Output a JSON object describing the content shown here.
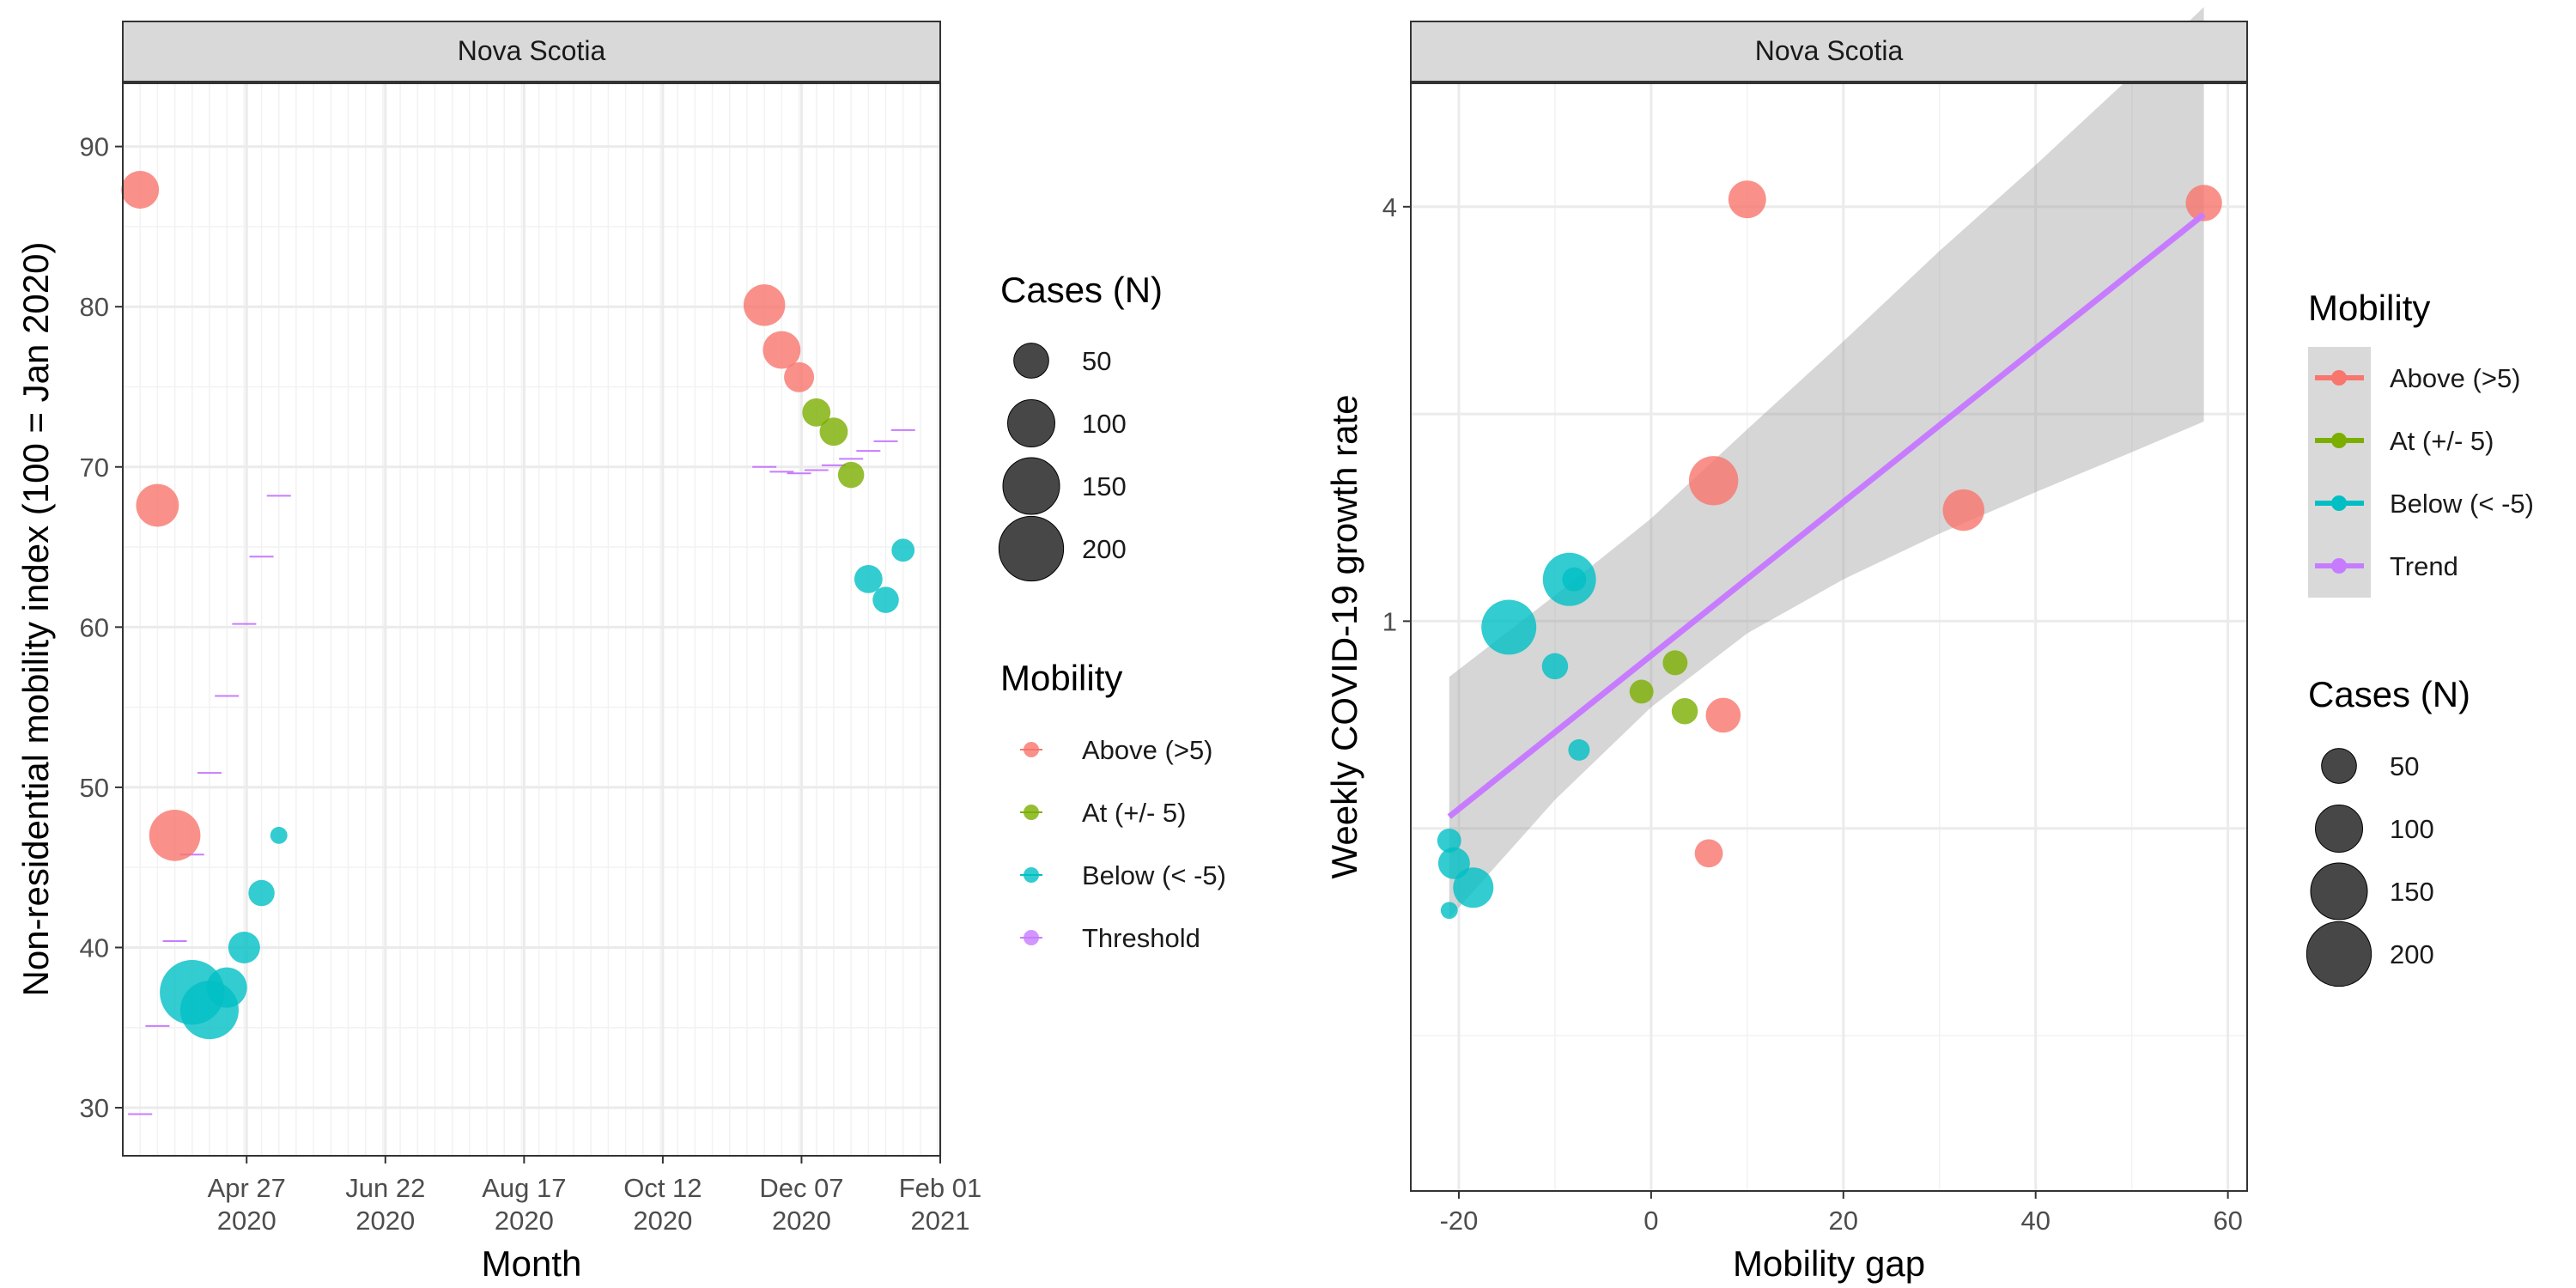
{
  "chart_data": [
    {
      "type": "scatter",
      "facet": "Nova Scotia",
      "xlabel": "Month",
      "ylabel": "Non-residential mobility index (100 = Jan 2020)",
      "xlim": [
        "2020-03-08",
        "2021-02-01"
      ],
      "ylim": [
        27,
        94
      ],
      "x_ticks": [
        {
          "date": "2020-04-27",
          "line1": "Apr 27",
          "line2": "2020"
        },
        {
          "date": "2020-06-22",
          "line1": "Jun 22",
          "line2": "2020"
        },
        {
          "date": "2020-08-17",
          "line1": "Aug 17",
          "line2": "2020"
        },
        {
          "date": "2020-10-12",
          "line1": "Oct 12",
          "line2": "2020"
        },
        {
          "date": "2020-12-07",
          "line1": "Dec 07",
          "line2": "2020"
        },
        {
          "date": "2021-02-01",
          "line1": "Feb 01",
          "line2": "2021"
        }
      ],
      "y_ticks": [
        30,
        40,
        50,
        60,
        70,
        80,
        90
      ],
      "grid": true,
      "colors": {
        "above": "#f8766d",
        "at": "#7cae00",
        "below": "#00bfc4",
        "threshold": "#c77cff"
      },
      "points": [
        {
          "date": "2020-03-15",
          "y": 87.3,
          "cases": 60,
          "mobility": "above"
        },
        {
          "date": "2020-03-22",
          "y": 67.6,
          "cases": 80,
          "mobility": "above"
        },
        {
          "date": "2020-03-29",
          "y": 47.0,
          "cases": 120,
          "mobility": "above"
        },
        {
          "date": "2020-04-05",
          "y": 37.2,
          "cases": 200,
          "mobility": "below"
        },
        {
          "date": "2020-04-12",
          "y": 36.1,
          "cases": 160,
          "mobility": "below"
        },
        {
          "date": "2020-04-19",
          "y": 37.5,
          "cases": 70,
          "mobility": "below"
        },
        {
          "date": "2020-04-26",
          "y": 40.0,
          "cases": 40,
          "mobility": "below"
        },
        {
          "date": "2020-05-03",
          "y": 43.4,
          "cases": 25,
          "mobility": "below"
        },
        {
          "date": "2020-05-10",
          "y": 47.0,
          "cases": 8,
          "mobility": "below"
        },
        {
          "date": "2020-11-22",
          "y": 80.1,
          "cases": 75,
          "mobility": "above"
        },
        {
          "date": "2020-11-29",
          "y": 77.3,
          "cases": 60,
          "mobility": "above"
        },
        {
          "date": "2020-12-06",
          "y": 75.6,
          "cases": 35,
          "mobility": "above"
        },
        {
          "date": "2020-12-13",
          "y": 73.4,
          "cases": 30,
          "mobility": "at"
        },
        {
          "date": "2020-12-20",
          "y": 72.2,
          "cases": 30,
          "mobility": "at"
        },
        {
          "date": "2020-12-27",
          "y": 69.5,
          "cases": 25,
          "mobility": "at"
        },
        {
          "date": "2021-01-03",
          "y": 63.0,
          "cases": 30,
          "mobility": "below"
        },
        {
          "date": "2021-01-10",
          "y": 61.7,
          "cases": 25,
          "mobility": "below"
        },
        {
          "date": "2021-01-17",
          "y": 64.8,
          "cases": 18,
          "mobility": "below"
        }
      ],
      "threshold": [
        {
          "date": "2020-03-15",
          "y": 29.6
        },
        {
          "date": "2020-03-22",
          "y": 35.1
        },
        {
          "date": "2020-03-29",
          "y": 40.4
        },
        {
          "date": "2020-04-05",
          "y": 45.8
        },
        {
          "date": "2020-04-12",
          "y": 50.9
        },
        {
          "date": "2020-04-19",
          "y": 55.7
        },
        {
          "date": "2020-04-26",
          "y": 60.2
        },
        {
          "date": "2020-05-03",
          "y": 64.4
        },
        {
          "date": "2020-05-10",
          "y": 68.2
        },
        {
          "date": "2020-11-22",
          "y": 70.0
        },
        {
          "date": "2020-11-29",
          "y": 69.7
        },
        {
          "date": "2020-12-06",
          "y": 69.6
        },
        {
          "date": "2020-12-13",
          "y": 69.8
        },
        {
          "date": "2020-12-20",
          "y": 70.1
        },
        {
          "date": "2020-12-27",
          "y": 70.5
        },
        {
          "date": "2021-01-03",
          "y": 71.0
        },
        {
          "date": "2021-01-10",
          "y": 71.6
        },
        {
          "date": "2021-01-17",
          "y": 72.3
        }
      ],
      "legend_cases": {
        "title": "Cases (N)",
        "values": [
          50,
          100,
          150,
          200
        ]
      },
      "legend_mobility": {
        "title": "Mobility",
        "labels": [
          "Above (>5)",
          "At (+/- 5)",
          "Below (< -5)",
          "Threshold"
        ]
      }
    },
    {
      "type": "scatter",
      "facet": "Nova Scotia",
      "xlabel": "Mobility gap",
      "ylabel": "Weekly COVID-19 growth rate",
      "log_y": true,
      "xlim": [
        -25,
        62
      ],
      "ylim_log2": [
        -2.75,
        2.6
      ],
      "x_ticks": [
        -20,
        0,
        20,
        40,
        60
      ],
      "y_ticks": [
        {
          "value": 1,
          "label": "1"
        },
        {
          "value": 4,
          "label": "4"
        }
      ],
      "grid": true,
      "points": [
        {
          "x": 10.0,
          "y": 4.1,
          "cases": 60,
          "mobility": "above"
        },
        {
          "x": 57.5,
          "y": 4.05,
          "cases": 55,
          "mobility": "above"
        },
        {
          "x": 6.5,
          "y": 1.6,
          "cases": 110,
          "mobility": "above"
        },
        {
          "x": 32.5,
          "y": 1.45,
          "cases": 75,
          "mobility": "above"
        },
        {
          "x": 7.5,
          "y": 0.73,
          "cases": 50,
          "mobility": "above"
        },
        {
          "x": 6.0,
          "y": 0.46,
          "cases": 30,
          "mobility": "above"
        },
        {
          "x": 2.5,
          "y": 0.87,
          "cases": 22,
          "mobility": "at"
        },
        {
          "x": -1.0,
          "y": 0.79,
          "cases": 20,
          "mobility": "at"
        },
        {
          "x": 3.5,
          "y": 0.74,
          "cases": 25,
          "mobility": "at"
        },
        {
          "x": -8.5,
          "y": 1.15,
          "cases": 130,
          "mobility": "below"
        },
        {
          "x": -8.0,
          "y": 1.15,
          "cases": 20,
          "mobility": "below"
        },
        {
          "x": -14.8,
          "y": 0.98,
          "cases": 140,
          "mobility": "below"
        },
        {
          "x": -10.0,
          "y": 0.86,
          "cases": 25,
          "mobility": "below"
        },
        {
          "x": -7.5,
          "y": 0.65,
          "cases": 15,
          "mobility": "below"
        },
        {
          "x": -21.0,
          "y": 0.48,
          "cases": 20,
          "mobility": "below"
        },
        {
          "x": -20.5,
          "y": 0.445,
          "cases": 40,
          "mobility": "below"
        },
        {
          "x": -18.5,
          "y": 0.41,
          "cases": 70,
          "mobility": "below"
        },
        {
          "x": -21.0,
          "y": 0.38,
          "cases": 8,
          "mobility": "below"
        }
      ],
      "trend": {
        "x": [
          -21,
          57.5
        ],
        "y": [
          0.52,
          3.9
        ]
      },
      "ci": {
        "x": [
          -21,
          -10,
          0,
          10,
          20,
          30,
          40,
          50,
          57.5
        ],
        "upper": [
          0.83,
          1.09,
          1.41,
          1.9,
          2.55,
          3.45,
          4.6,
          6.2,
          7.8
        ],
        "lower": [
          0.37,
          0.55,
          0.75,
          0.96,
          1.15,
          1.34,
          1.54,
          1.76,
          1.95
        ]
      },
      "legend_mobility": {
        "title": "Mobility",
        "labels": [
          "Above (>5)",
          "At (+/- 5)",
          "Below (< -5)",
          "Trend"
        ]
      },
      "legend_cases": {
        "title": "Cases (N)",
        "values": [
          50,
          100,
          150,
          200
        ]
      }
    }
  ]
}
